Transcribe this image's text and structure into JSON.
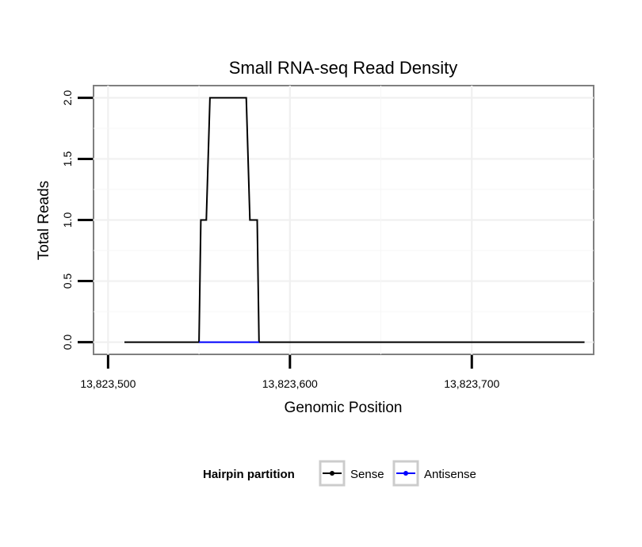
{
  "chart_data": {
    "type": "line",
    "title": "Small RNA-seq Read Density",
    "xlabel": "Genomic Position",
    "ylabel": "Total Reads",
    "xlim": [
      13823492,
      13823767
    ],
    "ylim": [
      -0.1,
      2.1
    ],
    "grid": true,
    "x_ticks": [
      13823500,
      13823600,
      13823700
    ],
    "x_tick_labels": [
      "13,823,500",
      "13,823,600",
      "13,823,700"
    ],
    "y_ticks": [
      0,
      0.5,
      1,
      1.5,
      2
    ],
    "y_tick_labels": [
      "0.0",
      "0.5",
      "1.0",
      "1.5",
      "2.0"
    ],
    "legend_position": "bottom",
    "legend_title": "Hairpin partition",
    "series": [
      {
        "name": "Sense",
        "color": "#000000",
        "x": [
          13823509,
          13823550,
          13823551,
          13823554,
          13823556,
          13823576,
          13823578,
          13823582,
          13823583,
          13823762
        ],
        "y": [
          0,
          0,
          1,
          1,
          2,
          2,
          1,
          1,
          0,
          0
        ]
      },
      {
        "name": "Antisense",
        "color": "#0000ff",
        "x": [
          13823550,
          13823583
        ],
        "y": [
          0,
          0
        ]
      }
    ]
  }
}
